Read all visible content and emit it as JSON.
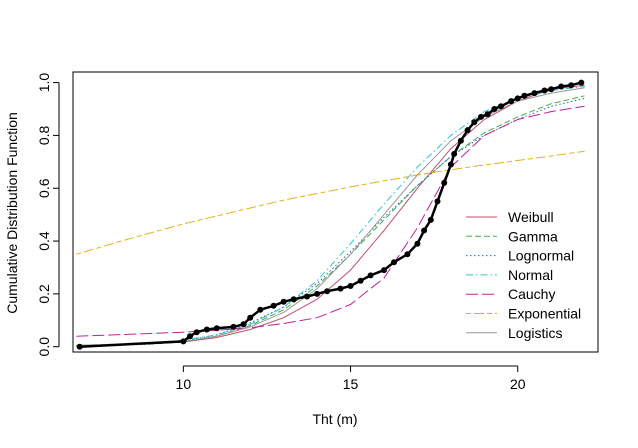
{
  "chart_data": {
    "type": "line",
    "title": "",
    "xlabel": "Tht (m)",
    "ylabel": "Cumulative Distribution Function",
    "xlim": [
      6.7,
      22.4
    ],
    "ylim": [
      -0.02,
      1.04
    ],
    "x_ticks": [
      10,
      15,
      20
    ],
    "y_ticks": [
      0.0,
      0.2,
      0.4,
      0.6,
      0.8,
      1.0
    ],
    "x_tick_labels": [
      "10",
      "15",
      "20"
    ],
    "y_tick_labels": [
      "0.0",
      "0.2",
      "0.4",
      "0.6",
      "0.8",
      "1.0"
    ],
    "grid": false,
    "legend_position": "bottom-right",
    "series": [
      {
        "name": "Weibull",
        "color": "#c0506a",
        "dash": "solid",
        "x": [
          6.8,
          8,
          9,
          10,
          11,
          12,
          13,
          14,
          15,
          16,
          17,
          18,
          19,
          20,
          21,
          22
        ],
        "y": [
          0.005,
          0.008,
          0.012,
          0.018,
          0.035,
          0.065,
          0.11,
          0.18,
          0.29,
          0.44,
          0.6,
          0.75,
          0.86,
          0.93,
          0.975,
          0.99
        ]
      },
      {
        "name": "Gamma",
        "color": "#3cb043",
        "dash": "dashed",
        "x": [
          6.8,
          8,
          9,
          10,
          11,
          12,
          13,
          14,
          15,
          16,
          17,
          18,
          19,
          20,
          21,
          22
        ],
        "y": [
          0.003,
          0.006,
          0.01,
          0.018,
          0.04,
          0.08,
          0.14,
          0.23,
          0.35,
          0.48,
          0.61,
          0.72,
          0.81,
          0.87,
          0.92,
          0.95
        ]
      },
      {
        "name": "Lognormal",
        "color": "#2a60c8",
        "dash": "dotted",
        "x": [
          6.8,
          8,
          9,
          10,
          11,
          12,
          13,
          14,
          15,
          16,
          17,
          18,
          19,
          20,
          21,
          22
        ],
        "y": [
          0.002,
          0.005,
          0.01,
          0.02,
          0.045,
          0.09,
          0.15,
          0.24,
          0.36,
          0.49,
          0.61,
          0.72,
          0.8,
          0.86,
          0.91,
          0.94
        ]
      },
      {
        "name": "Normal",
        "color": "#2ec4d6",
        "dash": "dashdot",
        "x": [
          6.8,
          8,
          9,
          10,
          11,
          12,
          13,
          14,
          15,
          16,
          17,
          18,
          19,
          20,
          21,
          22
        ],
        "y": [
          0.005,
          0.01,
          0.015,
          0.025,
          0.045,
          0.085,
          0.15,
          0.25,
          0.39,
          0.54,
          0.68,
          0.8,
          0.89,
          0.94,
          0.97,
          0.985
        ]
      },
      {
        "name": "Cauchy",
        "color": "#c0209a",
        "dash": "longdash",
        "x": [
          6.8,
          8,
          9,
          10,
          11,
          12,
          13,
          14,
          15,
          16,
          17,
          18,
          19,
          20,
          21,
          22
        ],
        "y": [
          0.04,
          0.045,
          0.05,
          0.055,
          0.062,
          0.072,
          0.088,
          0.11,
          0.16,
          0.26,
          0.45,
          0.68,
          0.8,
          0.86,
          0.89,
          0.91
        ]
      },
      {
        "name": "Exponential",
        "color": "#e8b020",
        "dash": "twodash",
        "x": [
          6.8,
          8,
          9,
          10,
          11,
          12,
          13,
          14,
          15,
          16,
          17,
          18,
          19,
          20,
          21,
          22
        ],
        "y": [
          0.35,
          0.395,
          0.43,
          0.465,
          0.495,
          0.525,
          0.555,
          0.58,
          0.605,
          0.628,
          0.65,
          0.67,
          0.688,
          0.705,
          0.722,
          0.74
        ]
      },
      {
        "name": "Logistics",
        "color": "#999999",
        "dash": "solid",
        "x": [
          6.8,
          8,
          9,
          10,
          11,
          12,
          13,
          14,
          15,
          16,
          17,
          18,
          19,
          20,
          21,
          22
        ],
        "y": [
          0.005,
          0.008,
          0.012,
          0.02,
          0.04,
          0.075,
          0.13,
          0.22,
          0.35,
          0.5,
          0.65,
          0.78,
          0.87,
          0.93,
          0.96,
          0.98
        ]
      }
    ],
    "empirical": {
      "x": [
        6.9,
        10.0,
        10.2,
        10.4,
        10.7,
        11.0,
        11.5,
        11.8,
        12.0,
        12.3,
        12.7,
        13.0,
        13.3,
        13.7,
        14.0,
        14.3,
        14.7,
        15.0,
        15.3,
        15.6,
        16.0,
        16.3,
        16.7,
        17.0,
        17.2,
        17.4,
        17.6,
        17.8,
        18.0,
        18.1,
        18.3,
        18.5,
        18.7,
        18.9,
        19.1,
        19.3,
        19.5,
        19.8,
        20.0,
        20.2,
        20.5,
        20.8,
        21.0,
        21.3,
        21.6,
        21.9
      ],
      "y": [
        0.0,
        0.02,
        0.04,
        0.055,
        0.065,
        0.07,
        0.075,
        0.085,
        0.11,
        0.14,
        0.155,
        0.17,
        0.18,
        0.19,
        0.2,
        0.21,
        0.22,
        0.23,
        0.25,
        0.27,
        0.29,
        0.32,
        0.35,
        0.39,
        0.44,
        0.48,
        0.55,
        0.62,
        0.69,
        0.73,
        0.78,
        0.82,
        0.85,
        0.87,
        0.88,
        0.9,
        0.91,
        0.93,
        0.94,
        0.95,
        0.96,
        0.97,
        0.975,
        0.985,
        0.99,
        1.0
      ]
    }
  }
}
